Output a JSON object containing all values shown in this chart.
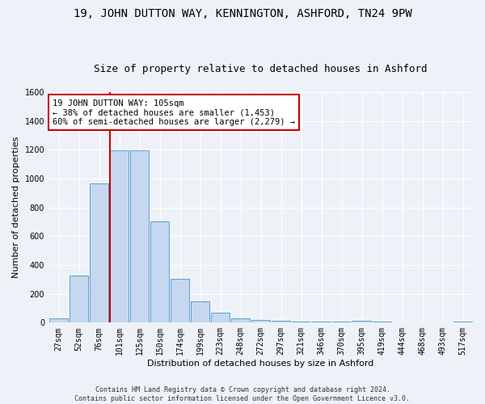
{
  "title": "19, JOHN DUTTON WAY, KENNINGTON, ASHFORD, TN24 9PW",
  "subtitle": "Size of property relative to detached houses in Ashford",
  "xlabel": "Distribution of detached houses by size in Ashford",
  "ylabel": "Number of detached properties",
  "categories": [
    "27sqm",
    "52sqm",
    "76sqm",
    "101sqm",
    "125sqm",
    "150sqm",
    "174sqm",
    "199sqm",
    "223sqm",
    "248sqm",
    "272sqm",
    "297sqm",
    "321sqm",
    "346sqm",
    "370sqm",
    "395sqm",
    "419sqm",
    "444sqm",
    "468sqm",
    "493sqm",
    "517sqm"
  ],
  "values": [
    30,
    325,
    965,
    1195,
    1195,
    700,
    305,
    150,
    70,
    30,
    20,
    15,
    10,
    10,
    5,
    15,
    5,
    3,
    3,
    3,
    10
  ],
  "bar_color": "#c5d8ef",
  "bar_edge_color": "#5a9fd4",
  "vline_index": 3,
  "vline_color": "#cc0000",
  "annotation_line1": "19 JOHN DUTTON WAY: 105sqm",
  "annotation_line2": "← 38% of detached houses are smaller (1,453)",
  "annotation_line3": "60% of semi-detached houses are larger (2,279) →",
  "ylim": [
    0,
    1600
  ],
  "yticks": [
    0,
    200,
    400,
    600,
    800,
    1000,
    1200,
    1400,
    1600
  ],
  "background_color": "#eef2f8",
  "grid_color": "#ffffff",
  "title_fontsize": 10,
  "subtitle_fontsize": 9,
  "axis_fontsize": 8,
  "tick_fontsize": 7,
  "footer_text": "Contains HM Land Registry data © Crown copyright and database right 2024.\nContains public sector information licensed under the Open Government Licence v3.0."
}
